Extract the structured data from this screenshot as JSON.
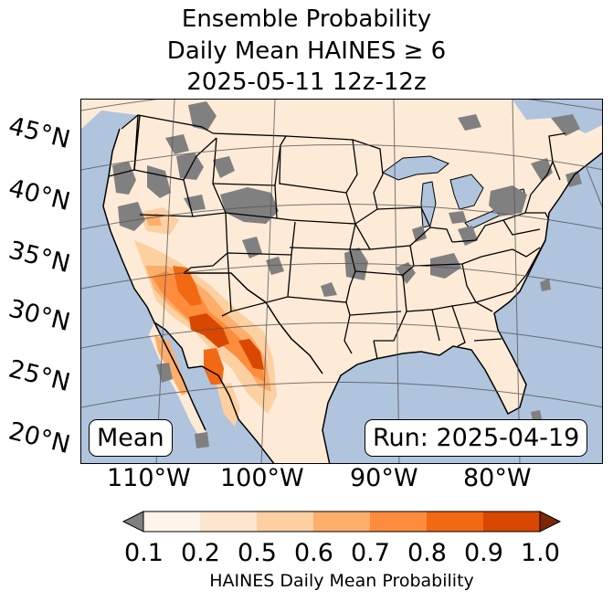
{
  "title": {
    "line1": "Ensemble Probability",
    "line2": "Daily Mean HAINES ≥ 6",
    "line3": "2025-05-11 12z-12z"
  },
  "map": {
    "lat_labels": [
      "45°N",
      "40°N",
      "35°N",
      "30°N",
      "25°N",
      "20°N"
    ],
    "lon_labels": [
      "110°W",
      "100°W",
      "90°W",
      "80°W"
    ],
    "statistic_box": "Mean",
    "run_box": "Run: 2025-04-19",
    "colors": {
      "ocean": "#b0c4de",
      "land": "#fdebd7",
      "missing": "#808080",
      "borders": "#000000",
      "gridlines": "#555555"
    }
  },
  "colorbar": {
    "label": "HAINES Daily Mean Probability",
    "ticks": [
      "0.1",
      "0.2",
      "0.5",
      "0.6",
      "0.7",
      "0.8",
      "0.9",
      "1.0"
    ],
    "colors": [
      "#fff5eb",
      "#fee6ce",
      "#fdd0a2",
      "#fdae6b",
      "#fd8d3c",
      "#f16913",
      "#d94801"
    ],
    "under_color": "#808080",
    "over_color": "#7f2704"
  }
}
